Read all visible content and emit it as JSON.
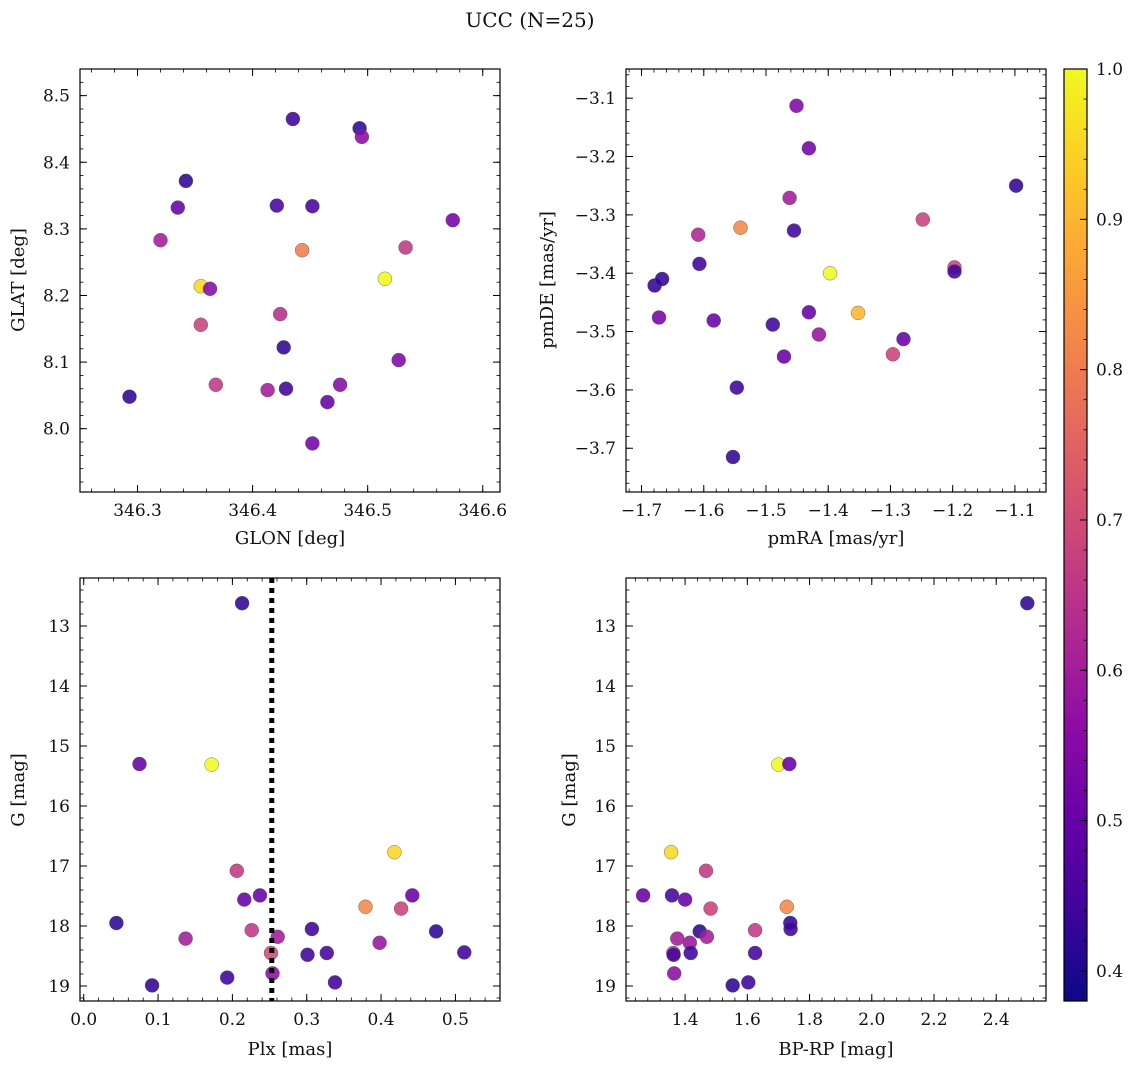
{
  "figure": {
    "title": "UCC (N=25)"
  },
  "colorbar": {
    "range": [
      0.38,
      1.0
    ],
    "ticks": [
      "0.4",
      "0.5",
      "0.6",
      "0.7",
      "0.8",
      "0.9",
      "1.0"
    ],
    "tick_values": [
      0.4,
      0.5,
      0.6,
      0.7,
      0.8,
      0.9,
      1.0
    ],
    "colormap": "plasma"
  },
  "chart_data": [
    {
      "type": "scatter",
      "xlabel": "GLON [deg]",
      "ylabel": "GLAT [deg]",
      "xlim": [
        346.25,
        346.615
      ],
      "ylim": [
        7.905,
        8.54
      ],
      "y_inverted": false,
      "xticks": [
        "346.3",
        "346.4",
        "346.5",
        "346.6"
      ],
      "xtick_values": [
        346.3,
        346.4,
        346.5,
        346.6
      ],
      "yticks": [
        "8.0",
        "8.1",
        "8.2",
        "8.3",
        "8.4",
        "8.5"
      ],
      "ytick_values": [
        8.0,
        8.1,
        8.2,
        8.3,
        8.4,
        8.5
      ],
      "points": [
        {
          "x": 346.293,
          "y": 8.048,
          "c": 0.42
        },
        {
          "x": 346.32,
          "y": 8.283,
          "c": 0.6
        },
        {
          "x": 346.335,
          "y": 8.332,
          "c": 0.5
        },
        {
          "x": 346.342,
          "y": 8.372,
          "c": 0.42
        },
        {
          "x": 346.355,
          "y": 8.214,
          "c": 0.95
        },
        {
          "x": 346.355,
          "y": 8.156,
          "c": 0.68
        },
        {
          "x": 346.363,
          "y": 8.21,
          "c": 0.55
        },
        {
          "x": 346.368,
          "y": 8.066,
          "c": 0.66
        },
        {
          "x": 346.413,
          "y": 8.058,
          "c": 0.6
        },
        {
          "x": 346.421,
          "y": 8.335,
          "c": 0.45
        },
        {
          "x": 346.424,
          "y": 8.172,
          "c": 0.64
        },
        {
          "x": 346.427,
          "y": 8.122,
          "c": 0.42
        },
        {
          "x": 346.429,
          "y": 8.06,
          "c": 0.44
        },
        {
          "x": 346.435,
          "y": 8.465,
          "c": 0.44
        },
        {
          "x": 346.443,
          "y": 8.268,
          "c": 0.8
        },
        {
          "x": 346.452,
          "y": 8.334,
          "c": 0.45
        },
        {
          "x": 346.452,
          "y": 7.978,
          "c": 0.52
        },
        {
          "x": 346.465,
          "y": 8.04,
          "c": 0.5
        },
        {
          "x": 346.476,
          "y": 8.066,
          "c": 0.55
        },
        {
          "x": 346.493,
          "y": 8.451,
          "c": 0.42
        },
        {
          "x": 346.495,
          "y": 8.438,
          "c": 0.56
        },
        {
          "x": 346.515,
          "y": 8.225,
          "c": 1.0
        },
        {
          "x": 346.527,
          "y": 8.103,
          "c": 0.54
        },
        {
          "x": 346.533,
          "y": 8.272,
          "c": 0.66
        },
        {
          "x": 346.574,
          "y": 8.313,
          "c": 0.52
        }
      ]
    },
    {
      "type": "scatter",
      "xlabel": "pmRA [mas/yr]",
      "ylabel": "pmDE [mas/yr]",
      "xlim": [
        -1.725,
        -1.05
      ],
      "ylim": [
        -3.775,
        -3.05
      ],
      "y_inverted": false,
      "xticks": [
        "−1.7",
        "−1.6",
        "−1.5",
        "−1.4",
        "−1.3",
        "−1.2",
        "−1.1"
      ],
      "xtick_values": [
        -1.7,
        -1.6,
        -1.5,
        -1.4,
        -1.3,
        -1.2,
        -1.1
      ],
      "yticks": [
        "−3.7",
        "−3.6",
        "−3.5",
        "−3.4",
        "−3.3",
        "−3.2",
        "−3.1"
      ],
      "ytick_values": [
        -3.7,
        -3.6,
        -3.5,
        -3.4,
        -3.3,
        -3.2,
        -3.1
      ],
      "points": [
        {
          "x": -1.679,
          "y": -3.421,
          "c": 0.42
        },
        {
          "x": -1.667,
          "y": -3.41,
          "c": 0.42
        },
        {
          "x": -1.672,
          "y": -3.476,
          "c": 0.52
        },
        {
          "x": -1.607,
          "y": -3.384,
          "c": 0.44
        },
        {
          "x": -1.609,
          "y": -3.334,
          "c": 0.62
        },
        {
          "x": -1.584,
          "y": -3.481,
          "c": 0.5
        },
        {
          "x": -1.553,
          "y": -3.715,
          "c": 0.42
        },
        {
          "x": -1.547,
          "y": -3.596,
          "c": 0.44
        },
        {
          "x": -1.541,
          "y": -3.322,
          "c": 0.82
        },
        {
          "x": -1.489,
          "y": -3.488,
          "c": 0.44
        },
        {
          "x": -1.471,
          "y": -3.543,
          "c": 0.5
        },
        {
          "x": -1.462,
          "y": -3.271,
          "c": 0.6
        },
        {
          "x": -1.455,
          "y": -3.327,
          "c": 0.44
        },
        {
          "x": -1.451,
          "y": -3.113,
          "c": 0.54
        },
        {
          "x": -1.431,
          "y": -3.186,
          "c": 0.52
        },
        {
          "x": -1.431,
          "y": -3.467,
          "c": 0.5
        },
        {
          "x": -1.415,
          "y": -3.505,
          "c": 0.58
        },
        {
          "x": -1.397,
          "y": -3.4,
          "c": 1.0
        },
        {
          "x": -1.352,
          "y": -3.468,
          "c": 0.9
        },
        {
          "x": -1.296,
          "y": -3.539,
          "c": 0.68
        },
        {
          "x": -1.279,
          "y": -3.513,
          "c": 0.5
        },
        {
          "x": -1.248,
          "y": -3.308,
          "c": 0.68
        },
        {
          "x": -1.197,
          "y": -3.39,
          "c": 0.68
        },
        {
          "x": -1.197,
          "y": -3.397,
          "c": 0.44
        },
        {
          "x": -1.098,
          "y": -3.25,
          "c": 0.42
        }
      ]
    },
    {
      "type": "scatter",
      "xlabel": "Plx [mas]",
      "ylabel": "G [mag]",
      "xlim": [
        -0.005,
        0.56
      ],
      "ylim": [
        19.25,
        12.2
      ],
      "y_inverted": true,
      "xticks": [
        "0.0",
        "0.1",
        "0.2",
        "0.3",
        "0.4",
        "0.5"
      ],
      "xtick_values": [
        0.0,
        0.1,
        0.2,
        0.3,
        0.4,
        0.5
      ],
      "yticks": [
        "13",
        "14",
        "15",
        "16",
        "17",
        "18",
        "19"
      ],
      "ytick_values": [
        13,
        14,
        15,
        16,
        17,
        18,
        19
      ],
      "vline": {
        "x": 0.253,
        "style": "dotted"
      },
      "points": [
        {
          "x": 0.044,
          "y": 17.95,
          "c": 0.42
        },
        {
          "x": 0.075,
          "y": 15.3,
          "c": 0.5
        },
        {
          "x": 0.092,
          "y": 18.99,
          "c": 0.42
        },
        {
          "x": 0.137,
          "y": 18.21,
          "c": 0.6
        },
        {
          "x": 0.172,
          "y": 15.31,
          "c": 1.0
        },
        {
          "x": 0.193,
          "y": 18.86,
          "c": 0.44
        },
        {
          "x": 0.206,
          "y": 17.08,
          "c": 0.66
        },
        {
          "x": 0.213,
          "y": 12.62,
          "c": 0.42
        },
        {
          "x": 0.216,
          "y": 17.56,
          "c": 0.5
        },
        {
          "x": 0.226,
          "y": 18.07,
          "c": 0.66
        },
        {
          "x": 0.237,
          "y": 17.49,
          "c": 0.5
        },
        {
          "x": 0.252,
          "y": 18.45,
          "c": 0.7
        },
        {
          "x": 0.254,
          "y": 18.79,
          "c": 0.56
        },
        {
          "x": 0.261,
          "y": 18.18,
          "c": 0.6
        },
        {
          "x": 0.301,
          "y": 18.48,
          "c": 0.44
        },
        {
          "x": 0.307,
          "y": 18.05,
          "c": 0.44
        },
        {
          "x": 0.327,
          "y": 18.45,
          "c": 0.45
        },
        {
          "x": 0.338,
          "y": 18.94,
          "c": 0.44
        },
        {
          "x": 0.379,
          "y": 17.68,
          "c": 0.82
        },
        {
          "x": 0.398,
          "y": 18.28,
          "c": 0.58
        },
        {
          "x": 0.418,
          "y": 16.77,
          "c": 0.95
        },
        {
          "x": 0.427,
          "y": 17.71,
          "c": 0.68
        },
        {
          "x": 0.442,
          "y": 17.49,
          "c": 0.5
        },
        {
          "x": 0.474,
          "y": 18.09,
          "c": 0.42
        },
        {
          "x": 0.512,
          "y": 18.44,
          "c": 0.44
        }
      ]
    },
    {
      "type": "scatter",
      "xlabel": "BP-RP [mag]",
      "ylabel": "G [mag]",
      "xlim": [
        1.21,
        2.56
      ],
      "ylim": [
        19.25,
        12.2
      ],
      "y_inverted": true,
      "xticks": [
        "1.4",
        "1.6",
        "1.8",
        "2.0",
        "2.2",
        "2.4"
      ],
      "xtick_values": [
        1.4,
        1.6,
        1.8,
        2.0,
        2.2,
        2.4
      ],
      "yticks": [
        "13",
        "14",
        "15",
        "16",
        "17",
        "18",
        "19"
      ],
      "ytick_values": [
        13,
        14,
        15,
        16,
        17,
        18,
        19
      ],
      "points": [
        {
          "x": 1.265,
          "y": 17.49,
          "c": 0.5
        },
        {
          "x": 1.355,
          "y": 16.77,
          "c": 0.95
        },
        {
          "x": 1.358,
          "y": 17.49,
          "c": 0.45
        },
        {
          "x": 1.362,
          "y": 18.45,
          "c": 0.66
        },
        {
          "x": 1.363,
          "y": 18.48,
          "c": 0.44
        },
        {
          "x": 1.365,
          "y": 18.79,
          "c": 0.56
        },
        {
          "x": 1.375,
          "y": 18.21,
          "c": 0.6
        },
        {
          "x": 1.4,
          "y": 17.56,
          "c": 0.5
        },
        {
          "x": 1.415,
          "y": 18.28,
          "c": 0.58
        },
        {
          "x": 1.418,
          "y": 18.45,
          "c": 0.44
        },
        {
          "x": 1.447,
          "y": 18.09,
          "c": 0.42
        },
        {
          "x": 1.467,
          "y": 17.08,
          "c": 0.66
        },
        {
          "x": 1.47,
          "y": 18.18,
          "c": 0.6
        },
        {
          "x": 1.482,
          "y": 17.71,
          "c": 0.68
        },
        {
          "x": 1.553,
          "y": 18.99,
          "c": 0.42
        },
        {
          "x": 1.603,
          "y": 18.94,
          "c": 0.44
        },
        {
          "x": 1.625,
          "y": 18.07,
          "c": 0.66
        },
        {
          "x": 1.625,
          "y": 18.45,
          "c": 0.45
        },
        {
          "x": 1.7,
          "y": 15.31,
          "c": 1.0
        },
        {
          "x": 1.727,
          "y": 17.68,
          "c": 0.82
        },
        {
          "x": 1.735,
          "y": 15.3,
          "c": 0.5
        },
        {
          "x": 1.738,
          "y": 17.95,
          "c": 0.42
        },
        {
          "x": 1.739,
          "y": 18.05,
          "c": 0.44
        },
        {
          "x": 2.5,
          "y": 12.62,
          "c": 0.42
        }
      ]
    }
  ]
}
